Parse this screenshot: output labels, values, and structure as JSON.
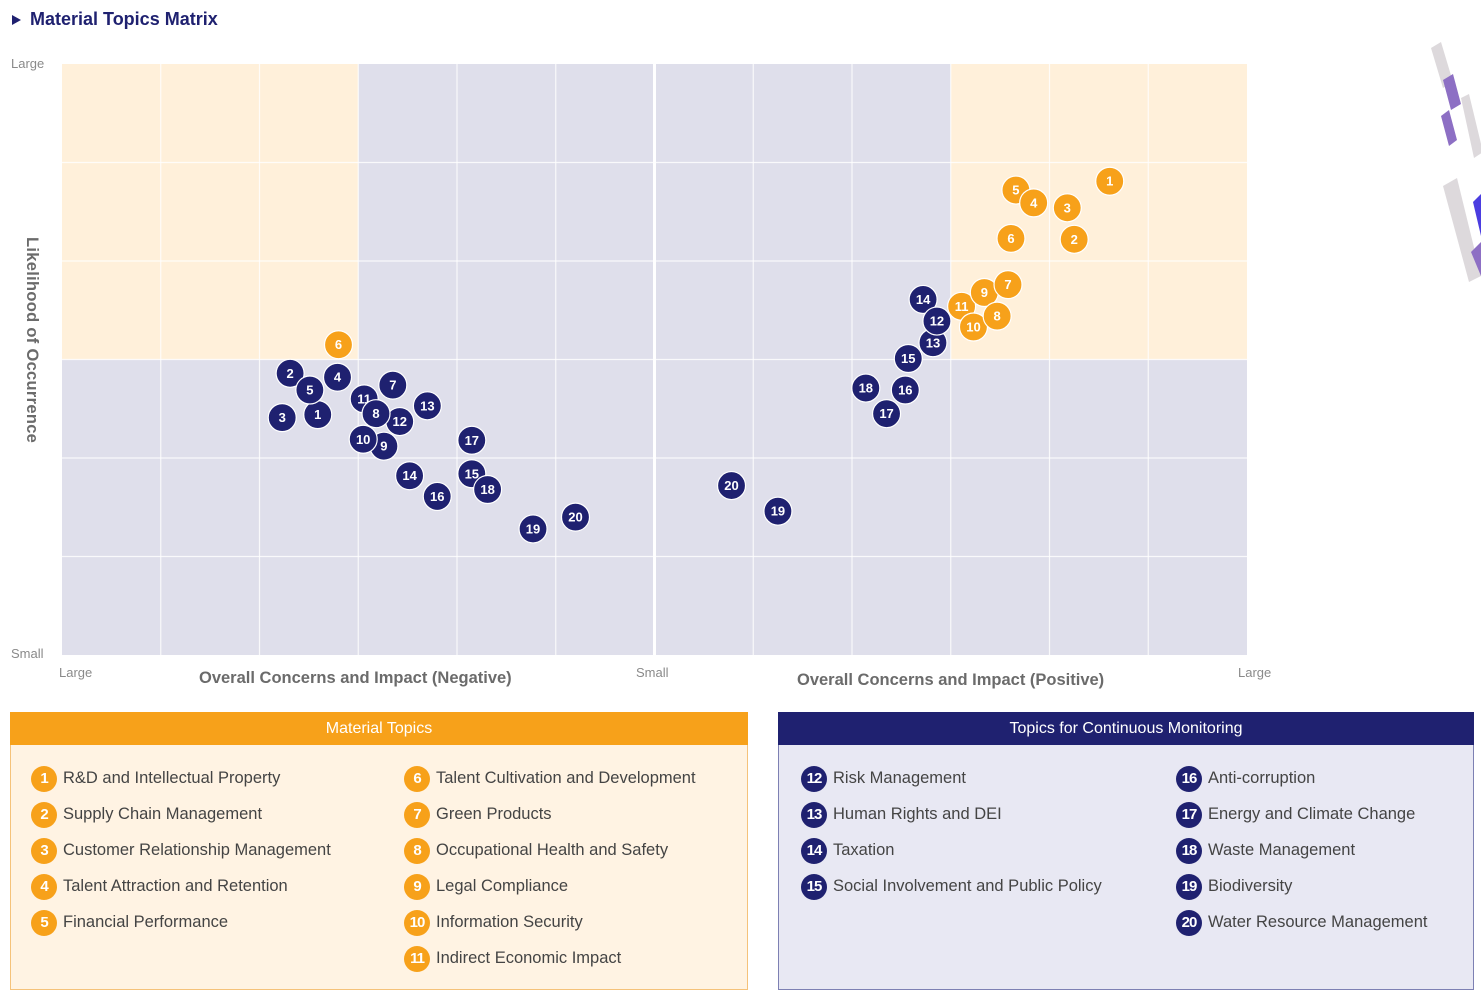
{
  "page": {
    "title": "Material Topics Matrix"
  },
  "colors": {
    "material": "#f7a11a",
    "monitoring": "#1f2170",
    "zone_high": "#fff0da",
    "zone_low": "#dfdfeb",
    "grid": "#ffffff",
    "axis_text": "#8a8a8a",
    "axis_title": "#6b6b6b"
  },
  "chart_data": {
    "type": "scatter",
    "title": "Material Topics Matrix",
    "ylabel": "Likelihood of Occurrence",
    "xlabels": {
      "negative": "Overall Concerns and Impact (Negative)",
      "positive": "Overall Concerns and Impact (Positive)"
    },
    "x_ticks": {
      "left": "Large",
      "center": "Small",
      "right": "Large"
    },
    "y_ticks": {
      "top": "Large",
      "bottom": "Small"
    },
    "xlim": [
      -6,
      6
    ],
    "ylim": [
      0,
      6
    ],
    "x_note": "negative values = negative impact side (more negative = larger), positive values = positive impact side",
    "grid": true,
    "grid_divisions": {
      "x": 12,
      "y": 6
    },
    "highlight_zones": [
      {
        "name": "negative-material-zone",
        "x": [
          -6,
          -3
        ],
        "y": [
          3,
          6
        ]
      },
      {
        "name": "positive-material-zone",
        "x": [
          3,
          6
        ],
        "y": [
          3,
          6
        ]
      }
    ],
    "series": [
      {
        "name": "Negative Impact",
        "points": [
          {
            "id": 1,
            "x": -3.41,
            "y": 2.44,
            "group": "monitoring"
          },
          {
            "id": 2,
            "x": -3.69,
            "y": 2.86,
            "group": "monitoring"
          },
          {
            "id": 3,
            "x": -3.77,
            "y": 2.41,
            "group": "monitoring"
          },
          {
            "id": 4,
            "x": -3.21,
            "y": 2.82,
            "group": "monitoring"
          },
          {
            "id": 5,
            "x": -3.49,
            "y": 2.69,
            "group": "monitoring"
          },
          {
            "id": 6,
            "x": -3.2,
            "y": 3.15,
            "group": "material"
          },
          {
            "id": 7,
            "x": -2.65,
            "y": 2.74,
            "group": "monitoring"
          },
          {
            "id": 11,
            "x": -2.94,
            "y": 2.6,
            "group": "monitoring"
          },
          {
            "id": 13,
            "x": -2.3,
            "y": 2.53,
            "group": "monitoring"
          },
          {
            "id": 12,
            "x": -2.58,
            "y": 2.37,
            "group": "monitoring"
          },
          {
            "id": 9,
            "x": -2.74,
            "y": 2.12,
            "group": "monitoring"
          },
          {
            "id": 8,
            "x": -2.82,
            "y": 2.45,
            "group": "monitoring"
          },
          {
            "id": 10,
            "x": -2.95,
            "y": 2.19,
            "group": "monitoring"
          },
          {
            "id": 17,
            "x": -1.85,
            "y": 2.18,
            "group": "monitoring"
          },
          {
            "id": 14,
            "x": -2.48,
            "y": 1.82,
            "group": "monitoring"
          },
          {
            "id": 16,
            "x": -2.2,
            "y": 1.61,
            "group": "monitoring"
          },
          {
            "id": 15,
            "x": -1.85,
            "y": 1.84,
            "group": "monitoring"
          },
          {
            "id": 18,
            "x": -1.69,
            "y": 1.68,
            "group": "monitoring"
          },
          {
            "id": 19,
            "x": -1.23,
            "y": 1.28,
            "group": "monitoring"
          },
          {
            "id": 20,
            "x": -0.8,
            "y": 1.4,
            "group": "monitoring"
          }
        ]
      },
      {
        "name": "Positive Impact",
        "points": [
          {
            "id": 20,
            "x": 0.78,
            "y": 1.72,
            "group": "monitoring"
          },
          {
            "id": 19,
            "x": 1.25,
            "y": 1.46,
            "group": "monitoring"
          },
          {
            "id": 18,
            "x": 2.14,
            "y": 2.71,
            "group": "monitoring"
          },
          {
            "id": 17,
            "x": 2.35,
            "y": 2.45,
            "group": "monitoring"
          },
          {
            "id": 16,
            "x": 2.54,
            "y": 2.69,
            "group": "monitoring"
          },
          {
            "id": 15,
            "x": 2.57,
            "y": 3.01,
            "group": "monitoring"
          },
          {
            "id": 14,
            "x": 2.72,
            "y": 3.61,
            "group": "monitoring"
          },
          {
            "id": 13,
            "x": 2.82,
            "y": 3.17,
            "group": "monitoring"
          },
          {
            "id": 12,
            "x": 2.86,
            "y": 3.39,
            "group": "monitoring"
          },
          {
            "id": 11,
            "x": 3.11,
            "y": 3.54,
            "group": "material"
          },
          {
            "id": 10,
            "x": 3.23,
            "y": 3.33,
            "group": "material"
          },
          {
            "id": 9,
            "x": 3.34,
            "y": 3.68,
            "group": "material"
          },
          {
            "id": 8,
            "x": 3.47,
            "y": 3.44,
            "group": "material"
          },
          {
            "id": 7,
            "x": 3.58,
            "y": 3.76,
            "group": "material"
          },
          {
            "id": 6,
            "x": 3.61,
            "y": 4.23,
            "group": "material"
          },
          {
            "id": 5,
            "x": 3.66,
            "y": 4.72,
            "group": "material"
          },
          {
            "id": 4,
            "x": 3.84,
            "y": 4.59,
            "group": "material"
          },
          {
            "id": 3,
            "x": 4.18,
            "y": 4.54,
            "group": "material"
          },
          {
            "id": 2,
            "x": 4.25,
            "y": 4.22,
            "group": "material"
          },
          {
            "id": 1,
            "x": 4.61,
            "y": 4.81,
            "group": "material"
          }
        ]
      }
    ],
    "legend": {
      "material": "Material Topics",
      "monitoring": "Topics for Continuous Monitoring"
    }
  },
  "legend": {
    "material": {
      "title": "Material Topics",
      "columns": [
        [
          {
            "num": "1",
            "label": "R&D and Intellectual Property"
          },
          {
            "num": "2",
            "label": "Supply Chain Management"
          },
          {
            "num": "3",
            "label": "Customer Relationship Management"
          },
          {
            "num": "4",
            "label": "Talent Attraction and Retention"
          },
          {
            "num": "5",
            "label": "Financial Performance"
          }
        ],
        [
          {
            "num": "6",
            "label": "Talent Cultivation and Development"
          },
          {
            "num": "7",
            "label": "Green Products"
          },
          {
            "num": "8",
            "label": "Occupational Health and Safety"
          },
          {
            "num": "9",
            "label": "Legal Compliance"
          },
          {
            "num": "10",
            "label": "Information Security"
          },
          {
            "num": "11",
            "label": "Indirect Economic Impact"
          }
        ]
      ]
    },
    "monitoring": {
      "title": "Topics for Continuous Monitoring",
      "columns": [
        [
          {
            "num": "12",
            "label": "Risk Management"
          },
          {
            "num": "13",
            "label": "Human Rights and DEI"
          },
          {
            "num": "14",
            "label": "Taxation"
          },
          {
            "num": "15",
            "label": "Social Involvement and Public Policy"
          }
        ],
        [
          {
            "num": "16",
            "label": "Anti-corruption"
          },
          {
            "num": "17",
            "label": "Energy and Climate Change"
          },
          {
            "num": "18",
            "label": "Waste Management"
          },
          {
            "num": "19",
            "label": "Biodiversity"
          },
          {
            "num": "20",
            "label": "Water Resource Management"
          }
        ]
      ]
    }
  }
}
